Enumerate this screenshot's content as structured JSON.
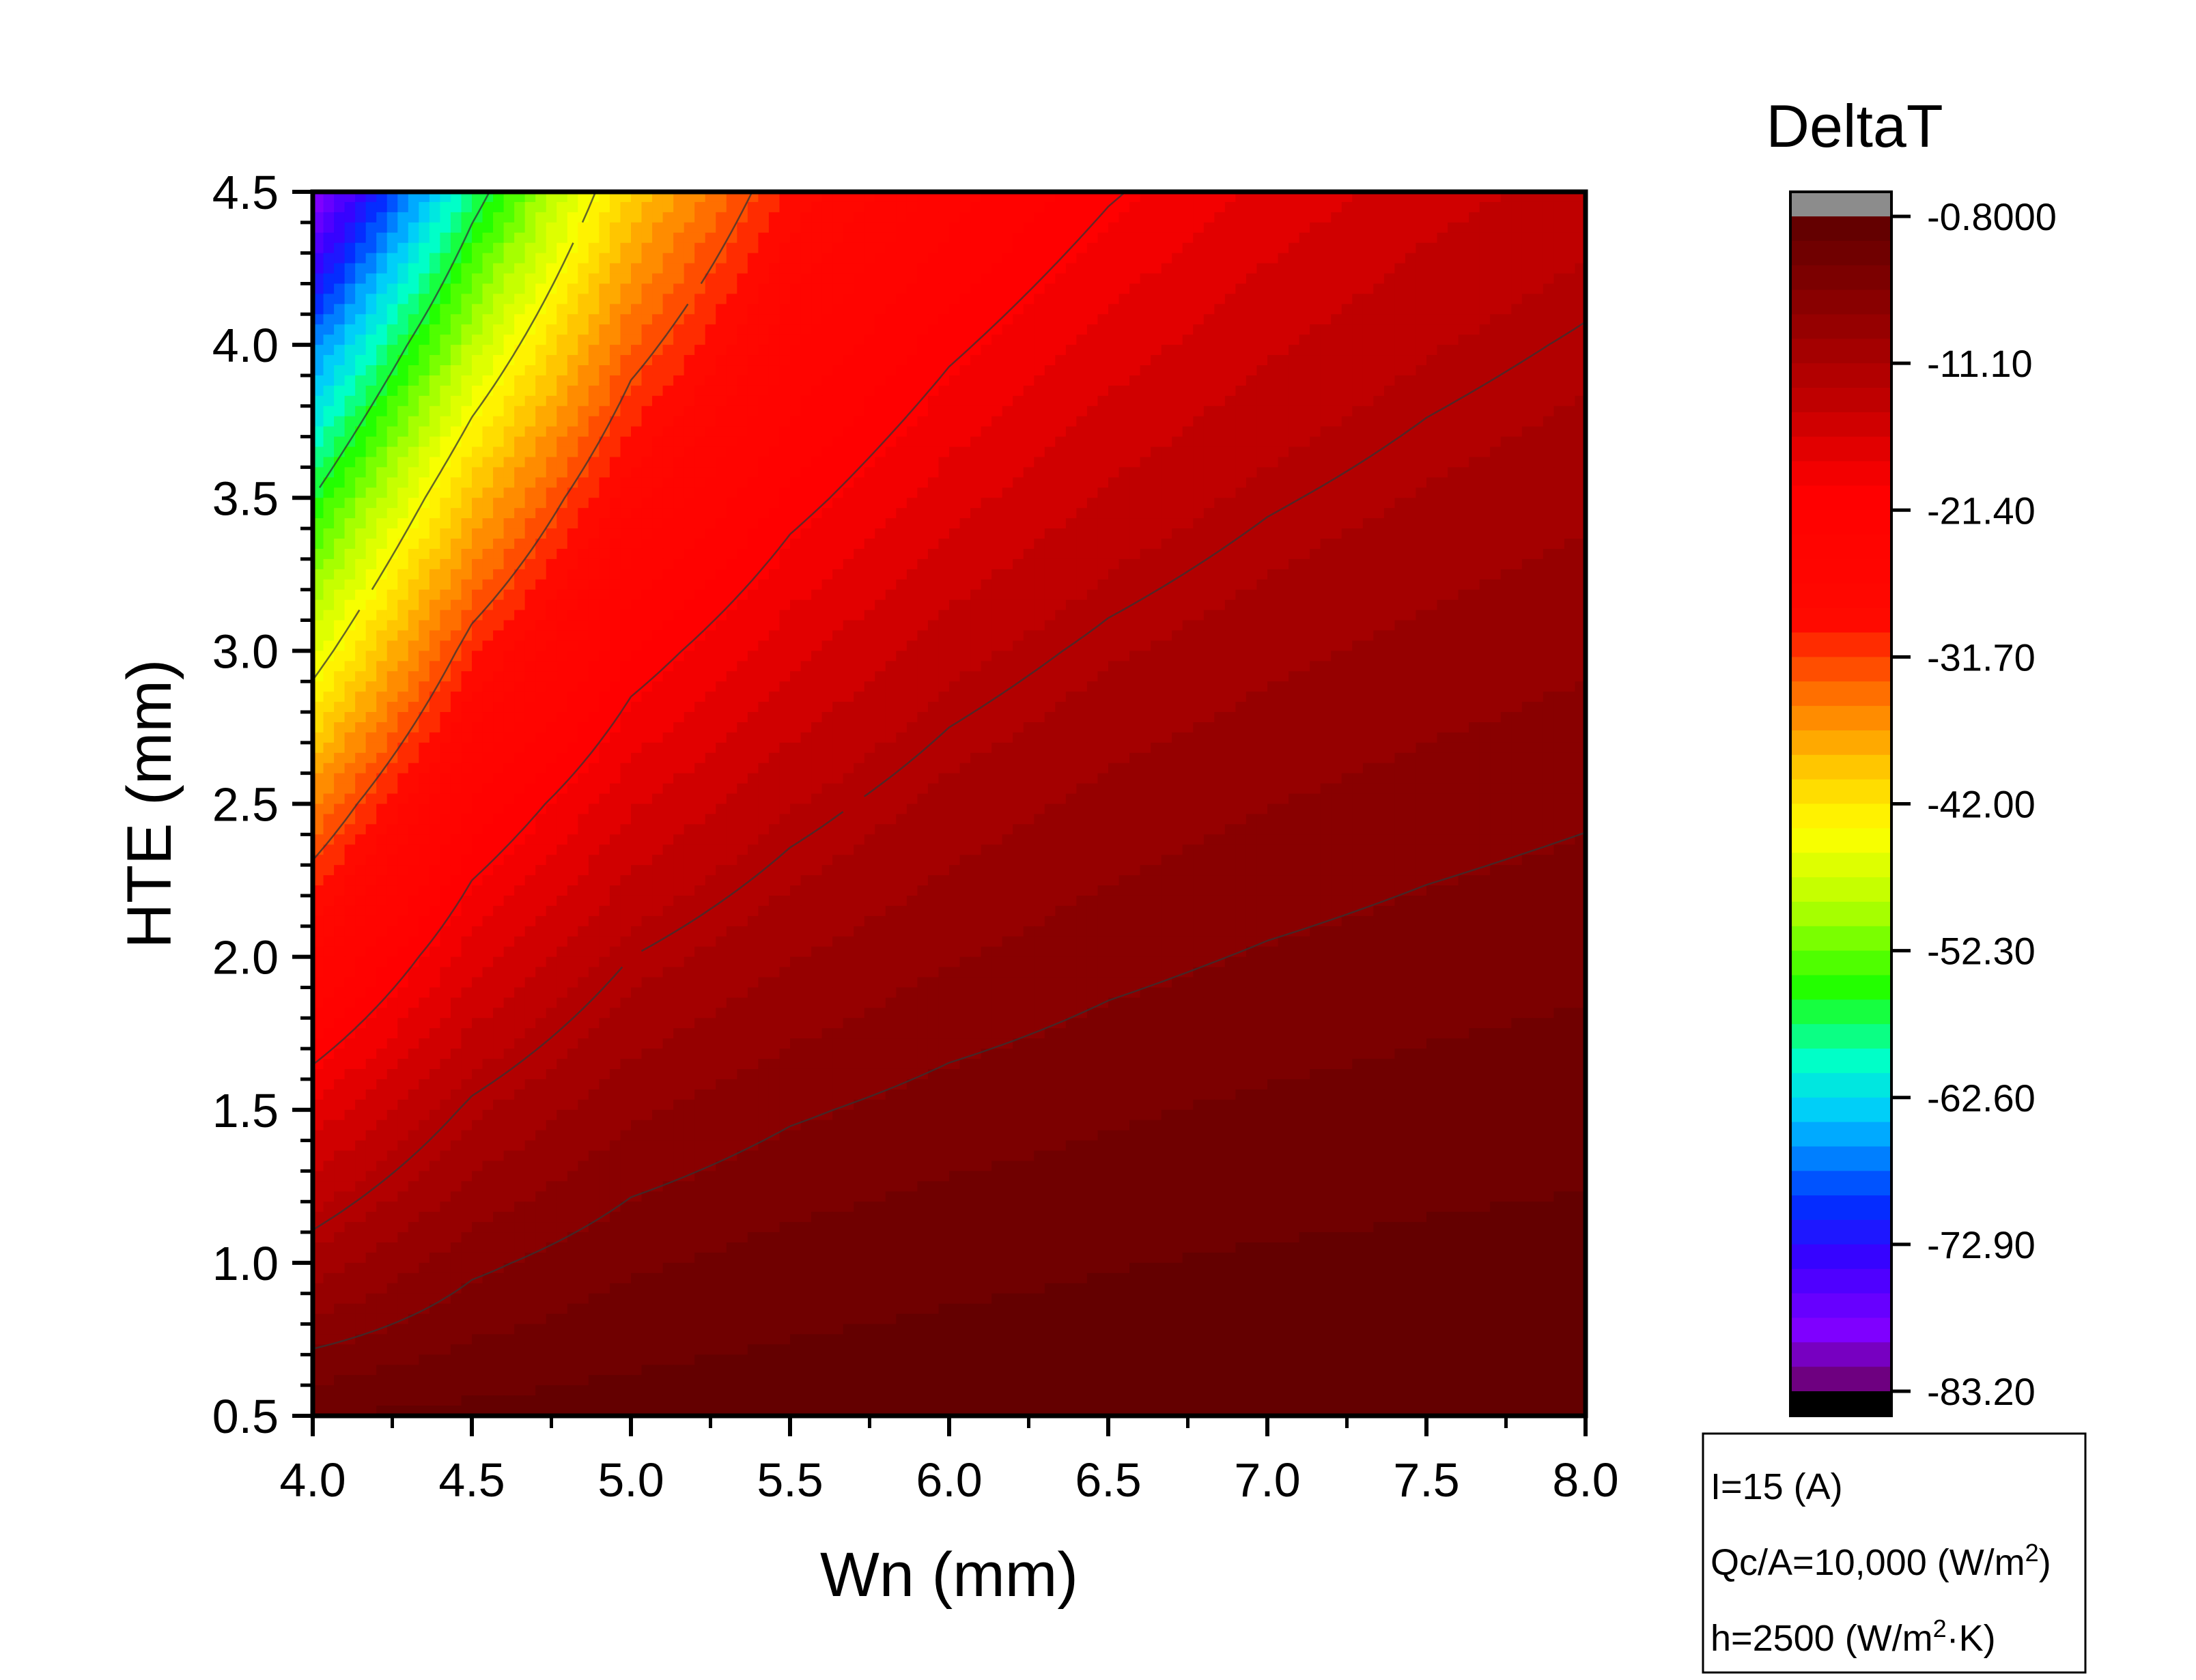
{
  "chart_data": {
    "type": "heatmap",
    "title": "",
    "xlabel": "Wn (mm)",
    "ylabel": "HTE (mm)",
    "xlim": [
      4.0,
      8.0
    ],
    "ylim": [
      0.5,
      4.5
    ],
    "x_ticks": [
      "4.0",
      "4.5",
      "5.0",
      "5.5",
      "6.0",
      "6.5",
      "7.0",
      "7.5",
      "8.0"
    ],
    "y_ticks": [
      "0.5",
      "1.0",
      "1.5",
      "2.0",
      "2.5",
      "3.0",
      "3.5",
      "4.0",
      "4.5"
    ],
    "x": [
      4.0,
      4.5,
      5.0,
      5.5,
      6.0,
      6.5,
      7.0,
      7.5,
      8.0
    ],
    "y": [
      0.5,
      1.0,
      1.5,
      2.0,
      2.5,
      3.0,
      3.5,
      4.0,
      4.5
    ],
    "z": [
      [
        -2.5,
        -2.0,
        -1.7,
        -1.5,
        -1.3,
        -1.2,
        -1.1,
        -1.0,
        -1.0
      ],
      [
        -10.5,
        -6.5,
        -4.5,
        -3.5,
        -3.0,
        -2.6,
        -2.3,
        -2.1,
        -1.9
      ],
      [
        -17.5,
        -11.5,
        -8.0,
        -6.3,
        -5.2,
        -4.5,
        -3.9,
        -3.5,
        -3.2
      ],
      [
        -26.0,
        -17.0,
        -12.0,
        -9.5,
        -7.8,
        -6.6,
        -5.8,
        -5.2,
        -4.7
      ],
      [
        -35.5,
        -23.0,
        -16.5,
        -13.0,
        -10.5,
        -8.8,
        -7.7,
        -6.9,
        -6.3
      ],
      [
        -46.0,
        -30.5,
        -21.5,
        -16.8,
        -13.5,
        -11.4,
        -9.9,
        -8.8,
        -8.0
      ],
      [
        -56.0,
        -39.0,
        -27.0,
        -21.0,
        -17.0,
        -14.2,
        -12.3,
        -10.9,
        -9.8
      ],
      [
        -67.0,
        -48.5,
        -33.5,
        -25.0,
        -20.5,
        -17.2,
        -14.8,
        -13.0,
        -11.7
      ],
      [
        -80.5,
        -58.0,
        -40.0,
        -29.5,
        -24.0,
        -20.3,
        -17.5,
        -15.3,
        -13.7
      ]
    ],
    "colorbar": {
      "title": "DeltaT",
      "tick_labels": [
        "-0.8000",
        "-11.10",
        "-21.40",
        "-31.70",
        "-42.00",
        "-52.30",
        "-62.60",
        "-72.90",
        "-83.20"
      ],
      "min": -83.2,
      "max": -0.8,
      "levels": 48,
      "over_color": "#8c8c8c",
      "under_color": "#000000",
      "gradient": [
        {
          "v": -0.8,
          "color": "#5e0000"
        },
        {
          "v": -7.0,
          "color": "#8a0000"
        },
        {
          "v": -14.0,
          "color": "#c20000"
        },
        {
          "v": -20.0,
          "color": "#ff0000"
        },
        {
          "v": -29.0,
          "color": "#ff0800"
        },
        {
          "v": -34.0,
          "color": "#ff6a00"
        },
        {
          "v": -40.0,
          "color": "#ffd000"
        },
        {
          "v": -44.0,
          "color": "#ffff00"
        },
        {
          "v": -49.0,
          "color": "#b8ff00"
        },
        {
          "v": -55.0,
          "color": "#20ff00"
        },
        {
          "v": -60.0,
          "color": "#00ffc8"
        },
        {
          "v": -64.0,
          "color": "#00c8ff"
        },
        {
          "v": -70.0,
          "color": "#0030ff"
        },
        {
          "v": -74.0,
          "color": "#3a00ff"
        },
        {
          "v": -79.0,
          "color": "#8000ff"
        },
        {
          "v": -83.2,
          "color": "#6a0060"
        }
      ]
    },
    "contour_lines": [
      -6,
      -12,
      -20,
      -32,
      -44,
      -56
    ],
    "grid": false,
    "legend": "colorbar-right"
  },
  "notes": {
    "line1": "I=15 (A)",
    "line2_pre": "Qc/A=10,000 (W/m",
    "line2_sup": "2",
    "line2_post": ")",
    "line3_pre": "h=2500 (W/m",
    "line3_sup": "2",
    "line3_post": "·K)"
  }
}
